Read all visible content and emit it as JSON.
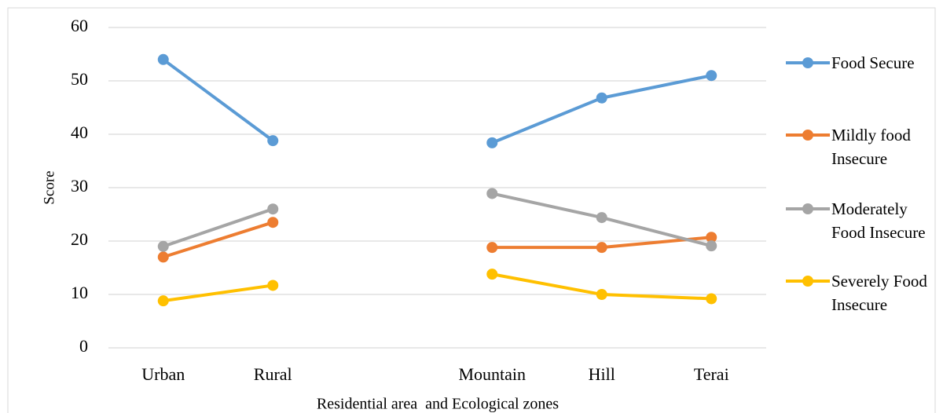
{
  "chart_data": {
    "type": "line",
    "xlabel": "Residential area  and Ecological zones",
    "ylabel": "Score",
    "categories": [
      "Urban",
      "Rural",
      null,
      "Mountain",
      "Hill",
      "Terai"
    ],
    "series": [
      {
        "name": "Food Secure",
        "color": "#5b9bd5",
        "values": [
          54,
          38.8,
          null,
          38.4,
          46.8,
          51
        ]
      },
      {
        "name": "Mildly food Insecure",
        "color": "#ed7d31",
        "values": [
          17,
          23.5,
          null,
          18.8,
          18.8,
          20.7
        ]
      },
      {
        "name": "Moderately Food Insecure",
        "color": "#a5a5a5",
        "values": [
          19,
          26,
          null,
          28.9,
          24.4,
          19.1
        ]
      },
      {
        "name": "Severely Food Insecure",
        "color": "#ffc000",
        "values": [
          8.8,
          11.7,
          null,
          13.8,
          10,
          9.2
        ]
      }
    ],
    "ylim": [
      0,
      60
    ],
    "yticks": [
      0,
      10,
      20,
      30,
      40,
      50,
      60
    ],
    "grid": true,
    "legend": "right"
  }
}
